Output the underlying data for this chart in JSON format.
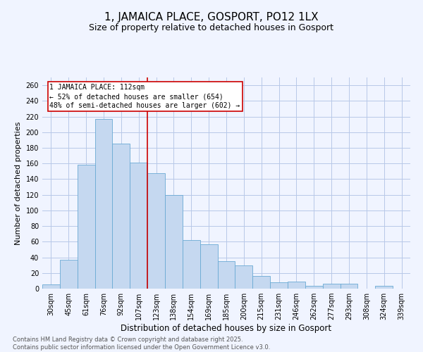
{
  "title": "1, JAMAICA PLACE, GOSPORT, PO12 1LX",
  "subtitle": "Size of property relative to detached houses in Gosport",
  "xlabel": "Distribution of detached houses by size in Gosport",
  "ylabel": "Number of detached properties",
  "categories": [
    "30sqm",
    "45sqm",
    "61sqm",
    "76sqm",
    "92sqm",
    "107sqm",
    "123sqm",
    "138sqm",
    "154sqm",
    "169sqm",
    "185sqm",
    "200sqm",
    "215sqm",
    "231sqm",
    "246sqm",
    "262sqm",
    "277sqm",
    "293sqm",
    "308sqm",
    "324sqm",
    "339sqm"
  ],
  "values": [
    5,
    37,
    158,
    217,
    185,
    161,
    148,
    120,
    62,
    57,
    35,
    30,
    16,
    8,
    9,
    4,
    6,
    6,
    0,
    4,
    0
  ],
  "bar_color": "#c5d8f0",
  "bar_edge_color": "#6aaad4",
  "reference_line_x": 5.5,
  "reference_line_color": "#cc0000",
  "annotation_text": "1 JAMAICA PLACE: 112sqm\n← 52% of detached houses are smaller (654)\n48% of semi-detached houses are larger (602) →",
  "annotation_box_color": "#cc0000",
  "annotation_text_color": "#000000",
  "ylim": [
    0,
    270
  ],
  "yticks": [
    0,
    20,
    40,
    60,
    80,
    100,
    120,
    140,
    160,
    180,
    200,
    220,
    240,
    260
  ],
  "background_color": "#f0f4ff",
  "grid_color": "#b8c8e8",
  "footer_text": "Contains HM Land Registry data © Crown copyright and database right 2025.\nContains public sector information licensed under the Open Government Licence v3.0.",
  "title_fontsize": 11,
  "subtitle_fontsize": 9,
  "xlabel_fontsize": 8.5,
  "ylabel_fontsize": 8,
  "tick_fontsize": 7,
  "annotation_fontsize": 7,
  "footer_fontsize": 6
}
